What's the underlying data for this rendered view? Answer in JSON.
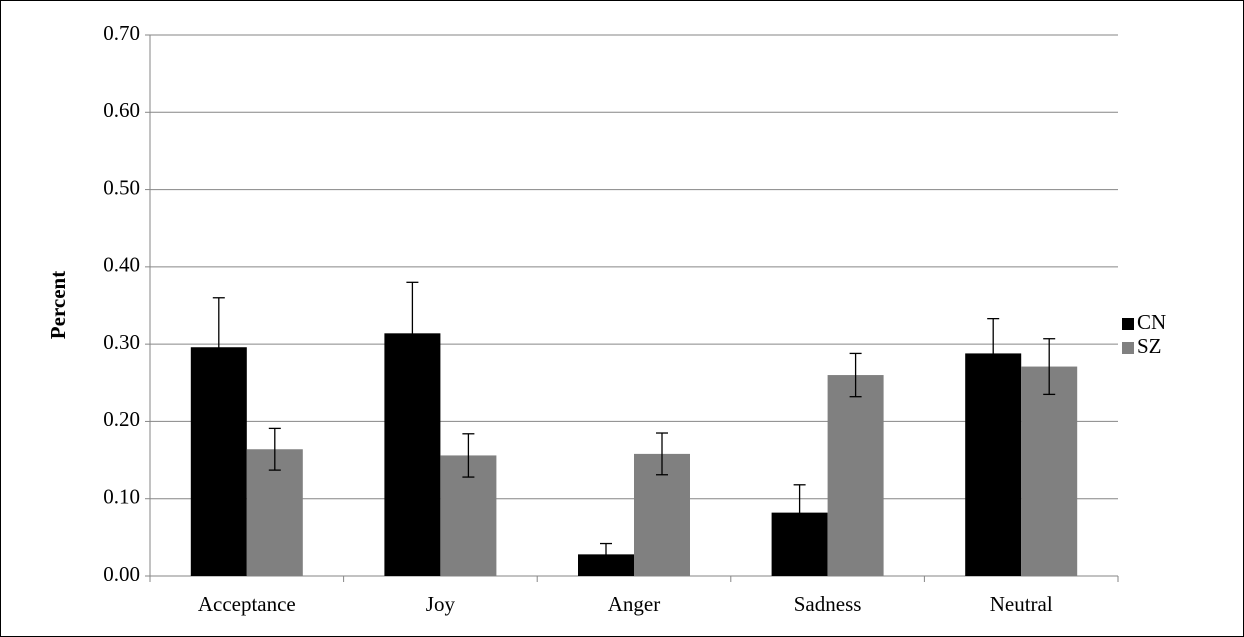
{
  "chart_data": {
    "type": "bar",
    "ylabel": "Percent",
    "categories": [
      "Acceptance",
      "Joy",
      "Anger",
      "Sadness",
      "Neutral"
    ],
    "series": [
      {
        "name": "CN",
        "color": "#000000",
        "values": [
          0.296,
          0.314,
          0.028,
          0.082,
          0.288
        ],
        "errors": [
          0.064,
          0.066,
          0.014,
          0.036,
          0.045
        ]
      },
      {
        "name": "SZ",
        "color": "#808080",
        "values": [
          0.164,
          0.156,
          0.158,
          0.26,
          0.271
        ],
        "errors": [
          0.027,
          0.028,
          0.027,
          0.028,
          0.036
        ]
      }
    ],
    "ylim": [
      0,
      0.7
    ],
    "yticks": [
      {
        "value": 0,
        "label": "0.00"
      },
      {
        "value": 0.1,
        "label": "0.10"
      },
      {
        "value": 0.2,
        "label": "0.20"
      },
      {
        "value": 0.3,
        "label": "0.30"
      },
      {
        "value": 0.4,
        "label": "0.40"
      },
      {
        "value": 0.5,
        "label": "0.50"
      },
      {
        "value": 0.6,
        "label": "0.60"
      },
      {
        "value": 0.7,
        "label": "0.70"
      }
    ],
    "grid": true,
    "legend": "right"
  }
}
